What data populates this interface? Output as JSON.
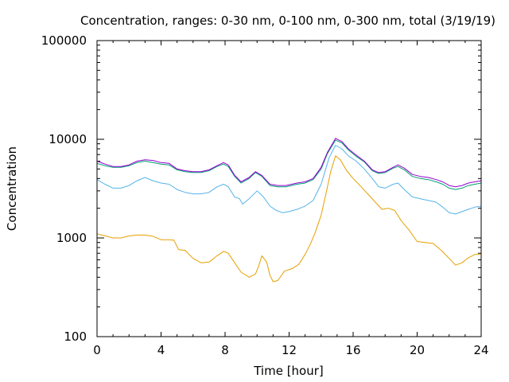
{
  "chart_data": {
    "type": "line",
    "title": "Concentration, ranges: 0-30 nm, 0-100 nm, 0-300 nm, total (3/19/19)",
    "xlabel": "Time [hour]",
    "ylabel": "Concentration",
    "x_scale": "linear",
    "y_scale": "log",
    "xlim": [
      0,
      24
    ],
    "ylim": [
      100,
      100000
    ],
    "x_ticks": [
      0,
      4,
      8,
      12,
      16,
      20,
      24
    ],
    "x_tick_labels": [
      "0",
      "4",
      "8",
      "12",
      "16",
      "20",
      "24"
    ],
    "y_ticks": [
      100,
      1000,
      10000,
      100000
    ],
    "y_tick_labels": [
      "100",
      "1000",
      "10000",
      "100000"
    ],
    "grid": false,
    "legend": "none",
    "series": [
      {
        "color": "#e69f00",
        "points": [
          [
            0,
            1100
          ],
          [
            0.5,
            1050
          ],
          [
            1,
            1000
          ],
          [
            1.5,
            1000
          ],
          [
            2,
            1050
          ],
          [
            2.5,
            1070
          ],
          [
            3,
            1070
          ],
          [
            3.5,
            1040
          ],
          [
            4,
            960
          ],
          [
            4.5,
            960
          ],
          [
            4.8,
            950
          ],
          [
            5.1,
            760
          ],
          [
            5.5,
            750
          ],
          [
            6,
            620
          ],
          [
            6.5,
            560
          ],
          [
            7,
            570
          ],
          [
            7.5,
            660
          ],
          [
            7.9,
            730
          ],
          [
            8.2,
            700
          ],
          [
            8.6,
            560
          ],
          [
            9,
            450
          ],
          [
            9.5,
            400
          ],
          [
            9.9,
            430
          ],
          [
            10.1,
            520
          ],
          [
            10.3,
            660
          ],
          [
            10.6,
            570
          ],
          [
            10.8,
            420
          ],
          [
            11,
            360
          ],
          [
            11.3,
            370
          ],
          [
            11.7,
            460
          ],
          [
            12.2,
            490
          ],
          [
            12.6,
            540
          ],
          [
            13,
            680
          ],
          [
            13.3,
            850
          ],
          [
            13.6,
            1100
          ],
          [
            14,
            1700
          ],
          [
            14.3,
            2800
          ],
          [
            14.6,
            4700
          ],
          [
            14.9,
            6800
          ],
          [
            15.2,
            6200
          ],
          [
            15.6,
            4800
          ],
          [
            16,
            4000
          ],
          [
            16.5,
            3300
          ],
          [
            17,
            2700
          ],
          [
            17.5,
            2200
          ],
          [
            17.8,
            1950
          ],
          [
            18.2,
            2000
          ],
          [
            18.6,
            1900
          ],
          [
            19,
            1500
          ],
          [
            19.5,
            1200
          ],
          [
            20,
            920
          ],
          [
            20.5,
            900
          ],
          [
            21,
            880
          ],
          [
            21.5,
            750
          ],
          [
            22,
            620
          ],
          [
            22.4,
            530
          ],
          [
            22.8,
            560
          ],
          [
            23.2,
            630
          ],
          [
            23.6,
            680
          ],
          [
            24,
            690
          ]
        ]
      },
      {
        "color": "#56b4e9",
        "points": [
          [
            0,
            3900
          ],
          [
            0.5,
            3500
          ],
          [
            1,
            3200
          ],
          [
            1.5,
            3200
          ],
          [
            2,
            3400
          ],
          [
            2.5,
            3800
          ],
          [
            3,
            4100
          ],
          [
            3.5,
            3800
          ],
          [
            4,
            3600
          ],
          [
            4.5,
            3500
          ],
          [
            5,
            3100
          ],
          [
            5.5,
            2900
          ],
          [
            6,
            2800
          ],
          [
            6.5,
            2800
          ],
          [
            7,
            2900
          ],
          [
            7.5,
            3300
          ],
          [
            7.9,
            3500
          ],
          [
            8.2,
            3300
          ],
          [
            8.6,
            2600
          ],
          [
            8.9,
            2500
          ],
          [
            9.1,
            2200
          ],
          [
            9.5,
            2500
          ],
          [
            10,
            3000
          ],
          [
            10.4,
            2600
          ],
          [
            10.8,
            2100
          ],
          [
            11.2,
            1900
          ],
          [
            11.6,
            1800
          ],
          [
            12,
            1850
          ],
          [
            12.5,
            1950
          ],
          [
            13,
            2100
          ],
          [
            13.5,
            2400
          ],
          [
            14,
            3500
          ],
          [
            14.5,
            6500
          ],
          [
            14.9,
            8700
          ],
          [
            15.3,
            8000
          ],
          [
            15.7,
            6800
          ],
          [
            16.2,
            6000
          ],
          [
            16.7,
            5000
          ],
          [
            17.2,
            4000
          ],
          [
            17.6,
            3300
          ],
          [
            18,
            3200
          ],
          [
            18.5,
            3500
          ],
          [
            18.8,
            3600
          ],
          [
            19.2,
            3100
          ],
          [
            19.7,
            2600
          ],
          [
            20.2,
            2500
          ],
          [
            20.7,
            2400
          ],
          [
            21.2,
            2300
          ],
          [
            21.6,
            2050
          ],
          [
            22,
            1800
          ],
          [
            22.4,
            1750
          ],
          [
            22.8,
            1850
          ],
          [
            23.2,
            1950
          ],
          [
            23.6,
            2050
          ],
          [
            24,
            2100
          ]
        ]
      },
      {
        "color": "#009e73",
        "points": [
          [
            0,
            5700
          ],
          [
            0.5,
            5400
          ],
          [
            1,
            5200
          ],
          [
            1.5,
            5200
          ],
          [
            2,
            5400
          ],
          [
            2.5,
            5800
          ],
          [
            3,
            6000
          ],
          [
            3.5,
            5800
          ],
          [
            4,
            5600
          ],
          [
            4.5,
            5500
          ],
          [
            5,
            4900
          ],
          [
            5.5,
            4700
          ],
          [
            6,
            4600
          ],
          [
            6.5,
            4600
          ],
          [
            7,
            4800
          ],
          [
            7.5,
            5300
          ],
          [
            7.9,
            5600
          ],
          [
            8.2,
            5300
          ],
          [
            8.6,
            4200
          ],
          [
            9,
            3600
          ],
          [
            9.5,
            4000
          ],
          [
            9.9,
            4600
          ],
          [
            10.3,
            4200
          ],
          [
            10.8,
            3400
          ],
          [
            11.3,
            3300
          ],
          [
            11.8,
            3300
          ],
          [
            12.5,
            3500
          ],
          [
            13,
            3600
          ],
          [
            13.5,
            3900
          ],
          [
            14,
            5000
          ],
          [
            14.4,
            7200
          ],
          [
            14.9,
            9800
          ],
          [
            15.3,
            9200
          ],
          [
            15.7,
            7800
          ],
          [
            16.2,
            6700
          ],
          [
            16.7,
            5900
          ],
          [
            17.2,
            4800
          ],
          [
            17.6,
            4500
          ],
          [
            18,
            4600
          ],
          [
            18.5,
            5100
          ],
          [
            18.8,
            5300
          ],
          [
            19.2,
            4900
          ],
          [
            19.7,
            4200
          ],
          [
            20.2,
            4000
          ],
          [
            20.7,
            3900
          ],
          [
            21.2,
            3700
          ],
          [
            21.6,
            3500
          ],
          [
            22,
            3200
          ],
          [
            22.4,
            3100
          ],
          [
            22.8,
            3200
          ],
          [
            23.2,
            3400
          ],
          [
            23.6,
            3500
          ],
          [
            24,
            3600
          ]
        ]
      },
      {
        "color": "#9400d3",
        "points": [
          [
            0,
            6000
          ],
          [
            0.5,
            5600
          ],
          [
            1,
            5300
          ],
          [
            1.5,
            5300
          ],
          [
            2,
            5500
          ],
          [
            2.5,
            6000
          ],
          [
            3,
            6200
          ],
          [
            3.5,
            6100
          ],
          [
            4,
            5800
          ],
          [
            4.5,
            5700
          ],
          [
            5,
            5000
          ],
          [
            5.5,
            4800
          ],
          [
            6,
            4700
          ],
          [
            6.5,
            4700
          ],
          [
            7,
            4900
          ],
          [
            7.5,
            5400
          ],
          [
            7.9,
            5800
          ],
          [
            8.2,
            5500
          ],
          [
            8.6,
            4300
          ],
          [
            9,
            3700
          ],
          [
            9.5,
            4100
          ],
          [
            9.9,
            4700
          ],
          [
            10.3,
            4300
          ],
          [
            10.8,
            3500
          ],
          [
            11.3,
            3400
          ],
          [
            11.8,
            3400
          ],
          [
            12.5,
            3600
          ],
          [
            13,
            3700
          ],
          [
            13.5,
            4000
          ],
          [
            14,
            5200
          ],
          [
            14.4,
            7400
          ],
          [
            14.9,
            10200
          ],
          [
            15.3,
            9500
          ],
          [
            15.7,
            8000
          ],
          [
            16.2,
            6900
          ],
          [
            16.7,
            6000
          ],
          [
            17.2,
            4900
          ],
          [
            17.6,
            4600
          ],
          [
            18,
            4700
          ],
          [
            18.5,
            5200
          ],
          [
            18.8,
            5500
          ],
          [
            19.2,
            5100
          ],
          [
            19.7,
            4400
          ],
          [
            20.2,
            4200
          ],
          [
            20.7,
            4100
          ],
          [
            21.2,
            3900
          ],
          [
            21.6,
            3700
          ],
          [
            22,
            3400
          ],
          [
            22.4,
            3300
          ],
          [
            22.8,
            3400
          ],
          [
            23.2,
            3600
          ],
          [
            23.6,
            3700
          ],
          [
            24,
            3800
          ]
        ]
      }
    ]
  }
}
